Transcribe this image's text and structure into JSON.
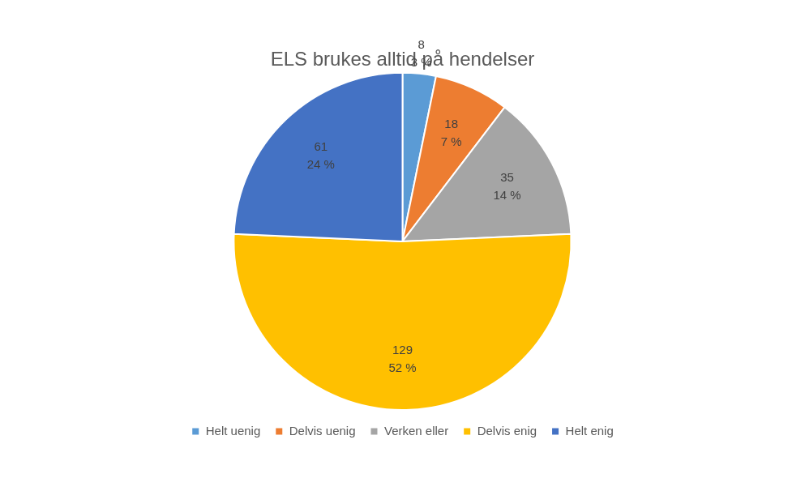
{
  "chart_data": {
    "type": "pie",
    "title": "ELS brukes alltid på hendelser",
    "categories": [
      "Helt uenig",
      "Delvis uenig",
      "Verken eller",
      "Delvis enig",
      "Helt enig"
    ],
    "values": [
      8,
      18,
      35,
      129,
      61
    ],
    "percentages": [
      3,
      7,
      14,
      52,
      24
    ],
    "percentage_labels": [
      "3 %",
      "7 %",
      "14 %",
      "52 %",
      "24 %"
    ],
    "colors": [
      "#5b9bd5",
      "#ed7d31",
      "#a5a5a5",
      "#ffc000",
      "#4472c4"
    ],
    "legend": "bottom",
    "data_labels": true
  }
}
